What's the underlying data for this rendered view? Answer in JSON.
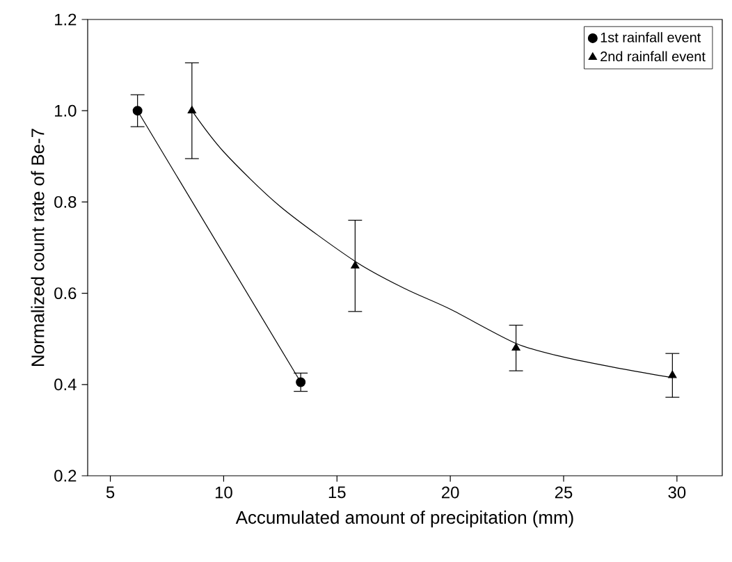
{
  "chart_data": {
    "type": "line",
    "xlabel": "Accumulated amount of precipitation (mm)",
    "ylabel": "Normalized count rate of Be-7",
    "xlim": [
      4,
      32
    ],
    "xticks": [
      5,
      10,
      15,
      20,
      25,
      30
    ],
    "ylim": [
      0.2,
      1.2
    ],
    "yticks": [
      {
        "value": 0.2,
        "label": "0.2"
      },
      {
        "value": 0.4,
        "label": "0.4"
      },
      {
        "value": 0.6,
        "label": "0.6"
      },
      {
        "value": 0.8,
        "label": "0.8"
      },
      {
        "value": 1.0,
        "label": "1.0"
      },
      {
        "value": 1.2,
        "label": "1.2"
      }
    ],
    "grid": false,
    "legend": "top right",
    "series": [
      {
        "name": "1st rainfall event",
        "type": "line",
        "marker": "circle",
        "color": "#000000",
        "x": [
          6.2,
          13.4
        ],
        "values": [
          1.0,
          0.405
        ],
        "errors": [
          0.035,
          0.02
        ]
      },
      {
        "name": "2nd rainfall event",
        "type": "scatter",
        "marker": "triangle",
        "color": "#000000",
        "x": [
          8.6,
          15.8,
          22.9,
          29.8
        ],
        "values": [
          1.0,
          0.66,
          0.48,
          0.42
        ],
        "errors": [
          0.105,
          0.1,
          0.05,
          0.048
        ]
      },
      {
        "marker": "none",
        "color": "#000000",
        "x": [
          8.6,
          10,
          12.5,
          15.8,
          18,
          20,
          22.9,
          25,
          27.5,
          29.8
        ],
        "values": [
          1.0,
          0.91,
          0.79,
          0.67,
          0.61,
          0.565,
          0.49,
          0.46,
          0.435,
          0.415
        ]
      }
    ]
  }
}
